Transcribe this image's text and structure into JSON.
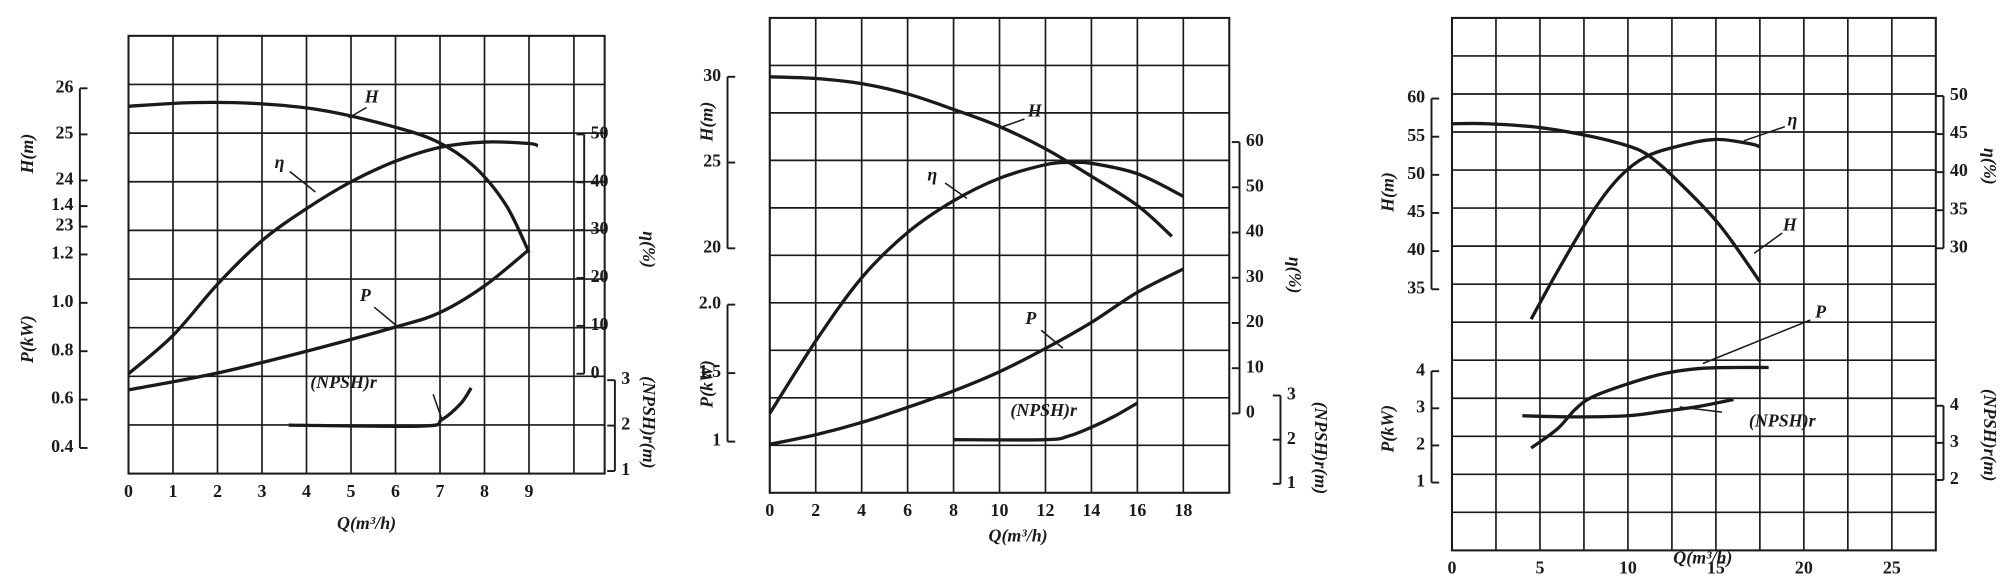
{
  "chart_data": [
    {
      "type": "line",
      "color": "#1a1a1a",
      "xlabel": "Q(m³/h)",
      "xlim": [
        0,
        10.7
      ],
      "xticks": [
        0,
        1,
        2,
        3,
        4,
        5,
        6,
        7,
        8,
        9
      ],
      "axes": [
        {
          "label": "H(m)",
          "lim": [
            23,
            26
          ],
          "ticks": [
            23,
            24,
            25,
            26
          ]
        },
        {
          "label": "P(kW)",
          "lim": [
            0.4,
            1.4
          ],
          "ticks": [
            0.4,
            0.6,
            0.8,
            {
              "value": 1,
              "label": "1.0"
            },
            1.2,
            1.4
          ]
        },
        {
          "label": "η(%)",
          "lim": [
            0,
            50
          ],
          "ticks": [
            0,
            10,
            20,
            30,
            40,
            50
          ]
        },
        {
          "label": "(NPSH)r(m)",
          "lim": [
            1,
            3
          ],
          "ticks": [
            1,
            2,
            3
          ]
        }
      ],
      "series": [
        {
          "name": "H",
          "axis": 0,
          "x": [
            0,
            1.44,
            2.87,
            4.31,
            5.75,
            6.9,
            7.76,
            8.48,
            9.0
          ],
          "values": [
            25.61,
            25.69,
            25.67,
            25.53,
            25.22,
            24.86,
            24.31,
            23.47,
            22.44
          ]
        },
        {
          "name": "η",
          "axis": 2,
          "x": [
            0,
            1,
            2,
            3,
            4,
            5,
            6,
            7,
            8,
            9,
            9.2
          ],
          "values": [
            0,
            8,
            18.7,
            27.8,
            34.5,
            40.1,
            44.4,
            47.3,
            48.4,
            48.1,
            47.6
          ]
        },
        {
          "name": "P",
          "axis": 1,
          "x": [
            0,
            2,
            4,
            6,
            7,
            8,
            9
          ],
          "values": [
            0.64,
            0.71,
            0.8,
            0.9,
            0.96,
            1.07,
            1.22
          ]
        },
        {
          "name": "(NPSH)r",
          "axis": 3,
          "x": [
            3.6,
            6.6,
            7.04,
            7.47,
            7.7
          ],
          "values": [
            2.01,
            1.99,
            2.13,
            2.49,
            2.83
          ]
        }
      ]
    },
    {
      "type": "line",
      "color": "#1a1a1a",
      "xlabel": "Q(m³/h)",
      "xlim": [
        0,
        20
      ],
      "xticks": [
        0,
        2,
        4,
        6,
        8,
        10,
        12,
        14,
        16,
        18
      ],
      "axes": [
        {
          "label": "H(m)",
          "lim": [
            20,
            30
          ],
          "ticks": [
            20,
            25,
            30
          ]
        },
        {
          "label": "P(kW)",
          "lim": [
            1,
            2
          ],
          "ticks": [
            1,
            1.5,
            {
              "value": 2,
              "label": "2.0"
            }
          ]
        },
        {
          "label": "η(%)",
          "lim": [
            0,
            60
          ],
          "ticks": [
            0,
            10,
            20,
            30,
            40,
            50,
            60
          ]
        },
        {
          "label": "(NPSH)r(m)",
          "lim": [
            1,
            3
          ],
          "ticks": [
            1,
            2,
            3
          ]
        }
      ],
      "series": [
        {
          "name": "H",
          "axis": 0,
          "x": [
            0,
            2,
            4,
            6,
            8,
            10,
            12,
            14,
            16,
            17.5
          ],
          "values": [
            30,
            29.9,
            29.6,
            29,
            28.1,
            27.1,
            25.8,
            24.2,
            22.5,
            20.7
          ]
        },
        {
          "name": "η",
          "axis": 2,
          "x": [
            0,
            2,
            4,
            6,
            8,
            10,
            12,
            13,
            14,
            16,
            18
          ],
          "values": [
            0,
            16,
            30,
            40,
            47,
            52,
            55,
            55.5,
            55.3,
            53,
            48
          ]
        },
        {
          "name": "P",
          "axis": 1,
          "x": [
            0,
            2,
            4,
            6,
            8,
            10,
            12,
            14,
            16,
            18
          ],
          "values": [
            0.98,
            1.05,
            1.14,
            1.25,
            1.37,
            1.51,
            1.68,
            1.87,
            2.09,
            2.26
          ]
        },
        {
          "name": "(NPSH)r",
          "axis": 3,
          "x": [
            8,
            12,
            13,
            14,
            15,
            16
          ],
          "values": [
            2,
            2,
            2.08,
            2.28,
            2.53,
            2.83
          ]
        }
      ]
    },
    {
      "type": "line",
      "color": "#1a1a1a",
      "xlabel": "Q(m³/h)",
      "xlim": [
        0,
        27.5
      ],
      "xticks": [
        0,
        5,
        10,
        15,
        20,
        25
      ],
      "axes": [
        {
          "label": "H(m)",
          "lim": [
            35,
            60
          ],
          "ticks": [
            35,
            40,
            45,
            50,
            55,
            60
          ]
        },
        {
          "label": "P(kW)",
          "lim": [
            1,
            4
          ],
          "ticks": [
            1,
            2,
            3,
            4
          ]
        },
        {
          "label": "η(%)",
          "lim": [
            30,
            50
          ],
          "ticks": [
            30,
            35,
            40,
            45,
            50
          ]
        },
        {
          "label": "(NPSH)r(m)",
          "lim": [
            2,
            4
          ],
          "ticks": [
            2,
            3,
            4
          ]
        }
      ],
      "series": [
        {
          "name": "η",
          "axis": 2,
          "x": [
            4.5,
            6,
            8,
            9.5,
            11,
            13,
            15,
            17,
            17.5
          ],
          "values": [
            20.7,
            27,
            34.8,
            39.3,
            42,
            43.5,
            44.3,
            43.7,
            43.3
          ]
        },
        {
          "name": "H",
          "axis": 0,
          "x": [
            0,
            2,
            5,
            8,
            10,
            11,
            12,
            13,
            14,
            15,
            16,
            17.5
          ],
          "values": [
            56.7,
            56.7,
            56.2,
            55,
            53.8,
            52.8,
            51,
            48.8,
            46.5,
            44,
            41,
            36
          ]
        },
        {
          "name": "P",
          "axis": 1,
          "x": [
            4.5,
            6,
            7,
            8,
            10,
            12,
            14,
            16,
            18
          ],
          "values": [
            1.93,
            2.45,
            2.97,
            3.31,
            3.66,
            3.93,
            4.07,
            4.1,
            4.1
          ]
        },
        {
          "name": "(NPSH)r",
          "axis": 3,
          "x": [
            4,
            7,
            10,
            12,
            14,
            16
          ],
          "values": [
            3.73,
            3.7,
            3.73,
            3.85,
            3.98,
            4.17
          ]
        }
      ]
    }
  ]
}
